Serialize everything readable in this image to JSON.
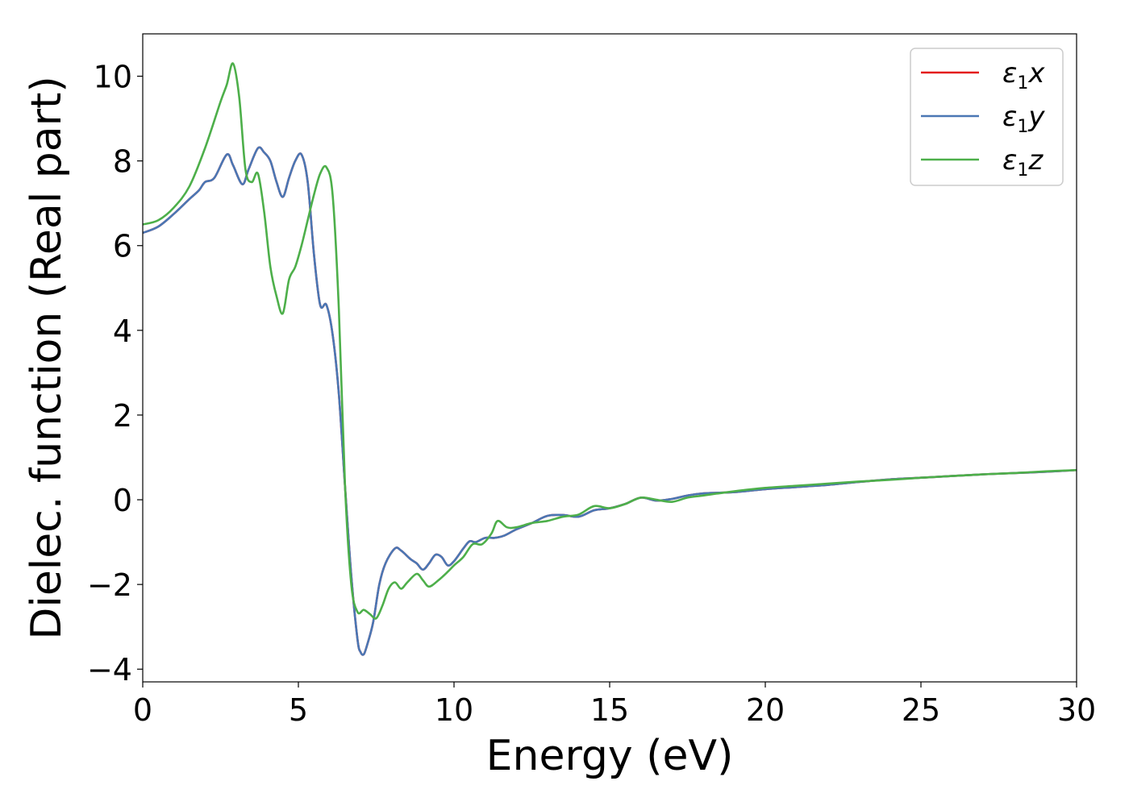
{
  "chart_data": {
    "type": "line",
    "xlabel": "Energy (eV)",
    "ylabel": "Dielec. function (Real part)",
    "xlim": [
      0,
      30
    ],
    "ylim": [
      -4.3,
      11.0
    ],
    "xticks": [
      0,
      5,
      10,
      15,
      20,
      25,
      30
    ],
    "yticks": [
      -4,
      -2,
      0,
      2,
      4,
      6,
      8,
      10
    ],
    "xtick_labels": [
      "0",
      "5",
      "10",
      "15",
      "20",
      "25",
      "30"
    ],
    "ytick_labels": [
      "−4",
      "−2",
      "0",
      "2",
      "4",
      "6",
      "8",
      "10"
    ],
    "grid": false,
    "legend_position": "top-right",
    "series": [
      {
        "name": "ε1x",
        "legend": {
          "symbol": "ε",
          "sub": "1",
          "var": "x"
        },
        "color": "#e41a1c",
        "x": [
          0,
          0.5,
          1.0,
          1.5,
          1.8,
          2.0,
          2.3,
          2.7,
          2.9,
          3.2,
          3.4,
          3.7,
          3.9,
          4.1,
          4.3,
          4.5,
          4.7,
          4.9,
          5.1,
          5.3,
          5.5,
          5.7,
          5.9,
          6.1,
          6.3,
          6.5,
          6.7,
          6.9,
          7.0,
          7.1,
          7.2,
          7.4,
          7.6,
          7.8,
          8.1,
          8.3,
          8.6,
          8.8,
          9.0,
          9.2,
          9.4,
          9.6,
          9.8,
          10.0,
          10.3,
          10.5,
          10.7,
          11.0,
          11.3,
          11.6,
          12.0,
          12.5,
          13.0,
          13.5,
          14.0,
          14.5,
          15.0,
          15.5,
          16.0,
          16.5,
          17.0,
          17.5,
          18.0,
          19.0,
          20.0,
          21.0,
          22.0,
          23.0,
          24.0,
          25.0,
          26.0,
          27.0,
          28.0,
          29.0,
          30.0
        ],
        "y": [
          6.3,
          6.45,
          6.75,
          7.1,
          7.3,
          7.5,
          7.6,
          8.15,
          7.9,
          7.45,
          7.8,
          8.3,
          8.2,
          8.0,
          7.5,
          7.15,
          7.6,
          8.0,
          8.15,
          7.5,
          5.8,
          4.6,
          4.6,
          3.9,
          2.5,
          0.3,
          -1.8,
          -3.3,
          -3.6,
          -3.65,
          -3.45,
          -2.9,
          -2.0,
          -1.5,
          -1.15,
          -1.2,
          -1.4,
          -1.5,
          -1.65,
          -1.5,
          -1.3,
          -1.35,
          -1.55,
          -1.45,
          -1.15,
          -0.98,
          -1.0,
          -0.9,
          -0.9,
          -0.85,
          -0.7,
          -0.55,
          -0.38,
          -0.36,
          -0.4,
          -0.25,
          -0.2,
          -0.1,
          0.05,
          -0.02,
          0.02,
          0.1,
          0.15,
          0.18,
          0.25,
          0.3,
          0.35,
          0.42,
          0.48,
          0.52,
          0.56,
          0.6,
          0.63,
          0.66,
          0.7
        ]
      },
      {
        "name": "ε1y",
        "legend": {
          "symbol": "ε",
          "sub": "1",
          "var": "y"
        },
        "color": "#4a77b4",
        "x": [
          0,
          0.5,
          1.0,
          1.5,
          1.8,
          2.0,
          2.3,
          2.7,
          2.9,
          3.2,
          3.4,
          3.7,
          3.9,
          4.1,
          4.3,
          4.5,
          4.7,
          4.9,
          5.1,
          5.3,
          5.5,
          5.7,
          5.9,
          6.1,
          6.3,
          6.5,
          6.7,
          6.9,
          7.0,
          7.1,
          7.2,
          7.4,
          7.6,
          7.8,
          8.1,
          8.3,
          8.6,
          8.8,
          9.0,
          9.2,
          9.4,
          9.6,
          9.8,
          10.0,
          10.3,
          10.5,
          10.7,
          11.0,
          11.3,
          11.6,
          12.0,
          12.5,
          13.0,
          13.5,
          14.0,
          14.5,
          15.0,
          15.5,
          16.0,
          16.5,
          17.0,
          17.5,
          18.0,
          19.0,
          20.0,
          21.0,
          22.0,
          23.0,
          24.0,
          25.0,
          26.0,
          27.0,
          28.0,
          29.0,
          30.0
        ],
        "y": [
          6.3,
          6.45,
          6.75,
          7.1,
          7.3,
          7.5,
          7.6,
          8.15,
          7.9,
          7.45,
          7.8,
          8.3,
          8.2,
          8.0,
          7.5,
          7.15,
          7.6,
          8.0,
          8.15,
          7.5,
          5.8,
          4.6,
          4.6,
          3.9,
          2.5,
          0.3,
          -1.8,
          -3.3,
          -3.6,
          -3.65,
          -3.45,
          -2.9,
          -2.0,
          -1.5,
          -1.15,
          -1.2,
          -1.4,
          -1.5,
          -1.65,
          -1.5,
          -1.3,
          -1.35,
          -1.55,
          -1.45,
          -1.15,
          -0.98,
          -1.0,
          -0.9,
          -0.9,
          -0.85,
          -0.7,
          -0.55,
          -0.38,
          -0.36,
          -0.4,
          -0.25,
          -0.2,
          -0.1,
          0.05,
          -0.02,
          0.02,
          0.1,
          0.15,
          0.18,
          0.25,
          0.3,
          0.35,
          0.42,
          0.48,
          0.52,
          0.56,
          0.6,
          0.63,
          0.66,
          0.7
        ]
      },
      {
        "name": "ε1z",
        "legend": {
          "symbol": "ε",
          "sub": "1",
          "var": "z"
        },
        "color": "#4daf4a",
        "x": [
          0,
          0.5,
          1.0,
          1.5,
          2.0,
          2.5,
          2.7,
          2.9,
          3.1,
          3.3,
          3.5,
          3.7,
          3.9,
          4.1,
          4.3,
          4.5,
          4.7,
          4.9,
          5.1,
          5.3,
          5.5,
          5.7,
          5.9,
          6.1,
          6.3,
          6.5,
          6.7,
          6.9,
          7.1,
          7.3,
          7.5,
          7.7,
          7.9,
          8.1,
          8.3,
          8.5,
          8.8,
          9.0,
          9.2,
          9.5,
          9.8,
          10.0,
          10.3,
          10.6,
          10.9,
          11.2,
          11.4,
          11.7,
          12.0,
          12.5,
          13.0,
          13.5,
          14.0,
          14.5,
          15.0,
          15.5,
          16.0,
          16.5,
          17.0,
          17.5,
          18.0,
          19.0,
          20.0,
          21.0,
          22.0,
          23.0,
          24.0,
          25.0,
          26.0,
          27.0,
          28.0,
          29.0,
          30.0
        ],
        "y": [
          6.5,
          6.6,
          6.9,
          7.4,
          8.3,
          9.4,
          9.8,
          10.3,
          9.5,
          7.8,
          7.5,
          7.7,
          6.8,
          5.5,
          4.8,
          4.4,
          5.2,
          5.5,
          6.0,
          6.6,
          7.2,
          7.7,
          7.85,
          7.2,
          4.5,
          0.3,
          -2.0,
          -2.65,
          -2.6,
          -2.7,
          -2.8,
          -2.5,
          -2.1,
          -1.95,
          -2.1,
          -1.95,
          -1.75,
          -1.9,
          -2.05,
          -1.9,
          -1.7,
          -1.55,
          -1.35,
          -1.05,
          -1.05,
          -0.8,
          -0.5,
          -0.65,
          -0.65,
          -0.55,
          -0.5,
          -0.4,
          -0.35,
          -0.15,
          -0.2,
          -0.1,
          0.05,
          0.0,
          -0.05,
          0.05,
          0.1,
          0.2,
          0.28,
          0.33,
          0.38,
          0.43,
          0.47,
          0.52,
          0.56,
          0.6,
          0.63,
          0.67,
          0.7
        ]
      }
    ]
  }
}
